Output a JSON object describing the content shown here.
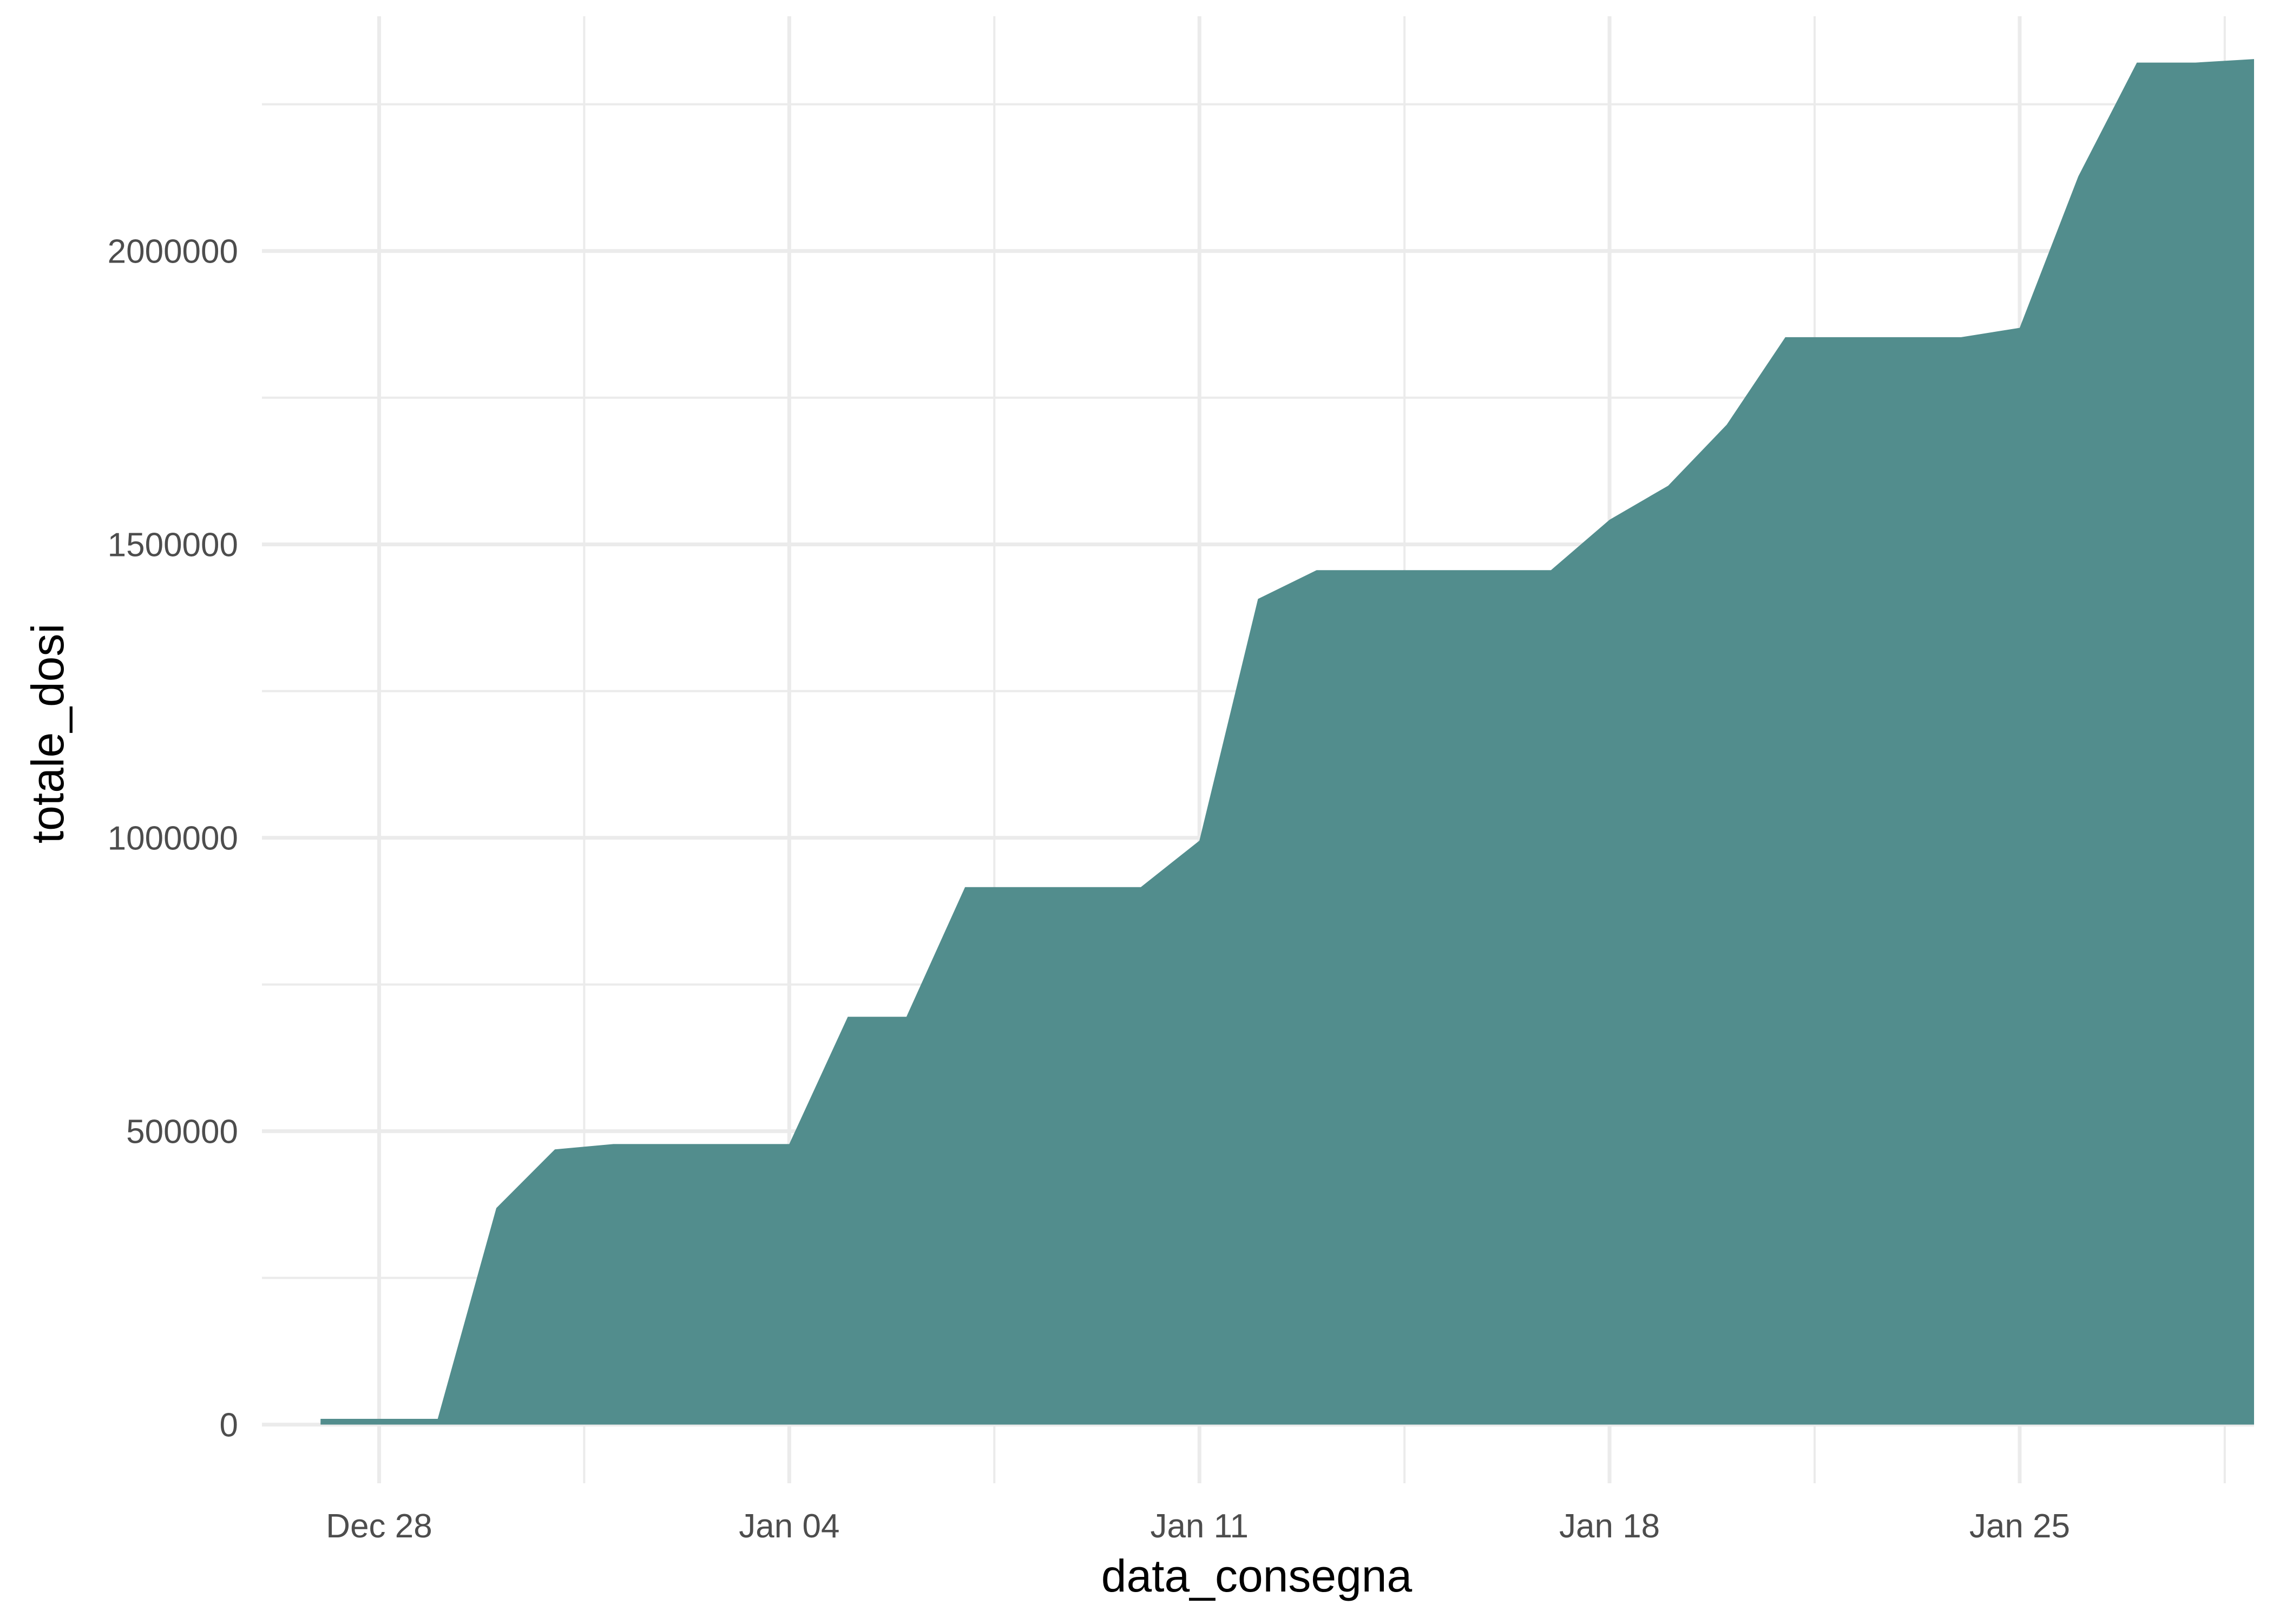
{
  "chart_data": {
    "type": "area",
    "xlabel": "data_consegna",
    "ylabel": "totale_dosi",
    "x_ticks": [
      "Dec 28",
      "Jan 04",
      "Jan 11",
      "Jan 18",
      "Jan 25"
    ],
    "x_tick_dates": [
      "2020-12-28",
      "2021-01-04",
      "2021-01-11",
      "2021-01-18",
      "2021-01-25"
    ],
    "y_ticks": [
      "0",
      "500000",
      "1000000",
      "1500000",
      "2000000"
    ],
    "ylim": [
      -100000,
      2400000
    ],
    "xlim": [
      "2020-12-26",
      "2021-01-29"
    ],
    "grid": true,
    "legend": "none",
    "fill_color": "#528d8d",
    "x": [
      "2020-12-27",
      "2020-12-29",
      "2020-12-30",
      "2020-12-31",
      "2021-01-01",
      "2021-01-04",
      "2021-01-05",
      "2021-01-06",
      "2021-01-07",
      "2021-01-10",
      "2021-01-11",
      "2021-01-12",
      "2021-01-13",
      "2021-01-17",
      "2021-01-18",
      "2021-01-19",
      "2021-01-20",
      "2021-01-21",
      "2021-01-24",
      "2021-01-25",
      "2021-01-26",
      "2021-01-27",
      "2021-01-28",
      "2021-01-29"
    ],
    "values": [
      9750,
      9750,
      369000,
      469000,
      478000,
      478000,
      695000,
      695000,
      916000,
      916000,
      995000,
      1407000,
      1456000,
      1456000,
      1542000,
      1600000,
      1704000,
      1853000,
      1853000,
      1869000,
      2127000,
      2321000,
      2321000,
      2327000
    ]
  }
}
